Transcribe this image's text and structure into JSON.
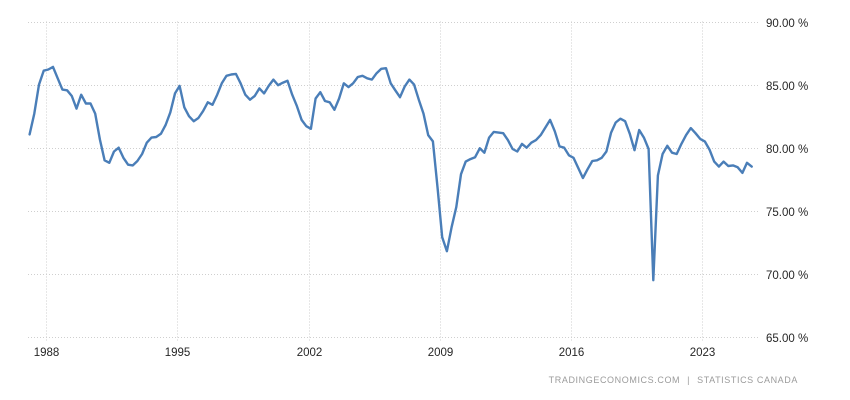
{
  "chart_data": {
    "type": "line",
    "frequency": "quarterly",
    "series": [
      {
        "start_time": 1987.125,
        "time_step": 0.25,
        "unit": "%",
        "values": [
          81.05,
          82.7,
          85.0,
          86.1,
          86.2,
          86.4,
          85.5,
          84.6,
          84.55,
          84.1,
          83.1,
          84.2,
          83.5,
          83.5,
          82.7,
          80.65,
          79.0,
          78.8,
          79.7,
          80.0,
          79.2,
          78.65,
          78.6,
          78.95,
          79.5,
          80.4,
          80.8,
          80.85,
          81.1,
          81.8,
          82.8,
          84.3,
          84.9,
          83.2,
          82.5,
          82.1,
          82.35,
          82.9,
          83.6,
          83.4,
          84.2,
          85.1,
          85.7,
          85.8,
          85.85,
          85.1,
          84.2,
          83.8,
          84.1,
          84.7,
          84.3,
          84.9,
          85.4,
          84.95,
          85.15,
          85.3,
          84.2,
          83.3,
          82.2,
          81.7,
          81.5,
          83.9,
          84.4,
          83.7,
          83.6,
          83.0,
          83.9,
          85.1,
          84.8,
          85.1,
          85.6,
          85.7,
          85.5,
          85.4,
          85.9,
          86.25,
          86.3,
          85.1,
          84.55,
          84.0,
          84.85,
          85.4,
          85.0,
          83.8,
          82.7,
          81.0,
          80.5,
          76.8,
          72.9,
          71.8,
          73.7,
          75.3,
          77.9,
          78.9,
          79.1,
          79.25,
          79.95,
          79.6,
          80.8,
          81.25,
          81.2,
          81.15,
          80.6,
          79.9,
          79.7,
          80.3,
          80.0,
          80.4,
          80.6,
          81.0,
          81.6,
          82.2,
          81.3,
          80.1,
          80.0,
          79.4,
          79.2,
          78.4,
          77.6,
          78.3,
          78.95,
          79.0,
          79.2,
          79.7,
          81.2,
          82.0,
          82.3,
          82.1,
          81.1,
          79.8,
          81.4,
          80.8,
          79.9,
          69.5,
          77.8,
          79.5,
          80.15,
          79.6,
          79.5,
          80.3,
          81.0,
          81.55,
          81.15,
          80.7,
          80.5,
          79.85,
          78.9,
          78.5,
          78.9,
          78.55,
          78.6,
          78.45,
          78.0,
          78.8,
          78.5
        ]
      }
    ],
    "x_ticks": [
      1988,
      1995,
      2002,
      2009,
      2016,
      2023
    ],
    "x_tick_labels": [
      "1988",
      "1995",
      "2002",
      "2009",
      "2016",
      "2023"
    ],
    "y_ticks": [
      90,
      85,
      80,
      75,
      70,
      65
    ],
    "y_tick_labels": [
      "90.00 %",
      "85.00 %",
      "80.00 %",
      "75.00 %",
      "70.00 %",
      "65.00 %"
    ],
    "xlim": [
      1987,
      2026
    ],
    "ylim": [
      65,
      90
    ],
    "grid": "dotted",
    "legend": "none",
    "colors": {
      "line": "#4a7eb8",
      "grid": "#cfcfcf",
      "tick_text": "#262626",
      "footer_text": "#9b9b9b",
      "background": "#ffffff"
    }
  },
  "footer": {
    "source_primary": "TRADINGECONOMICS.COM",
    "separator": "|",
    "source_secondary": "STATISTICS CANADA"
  }
}
